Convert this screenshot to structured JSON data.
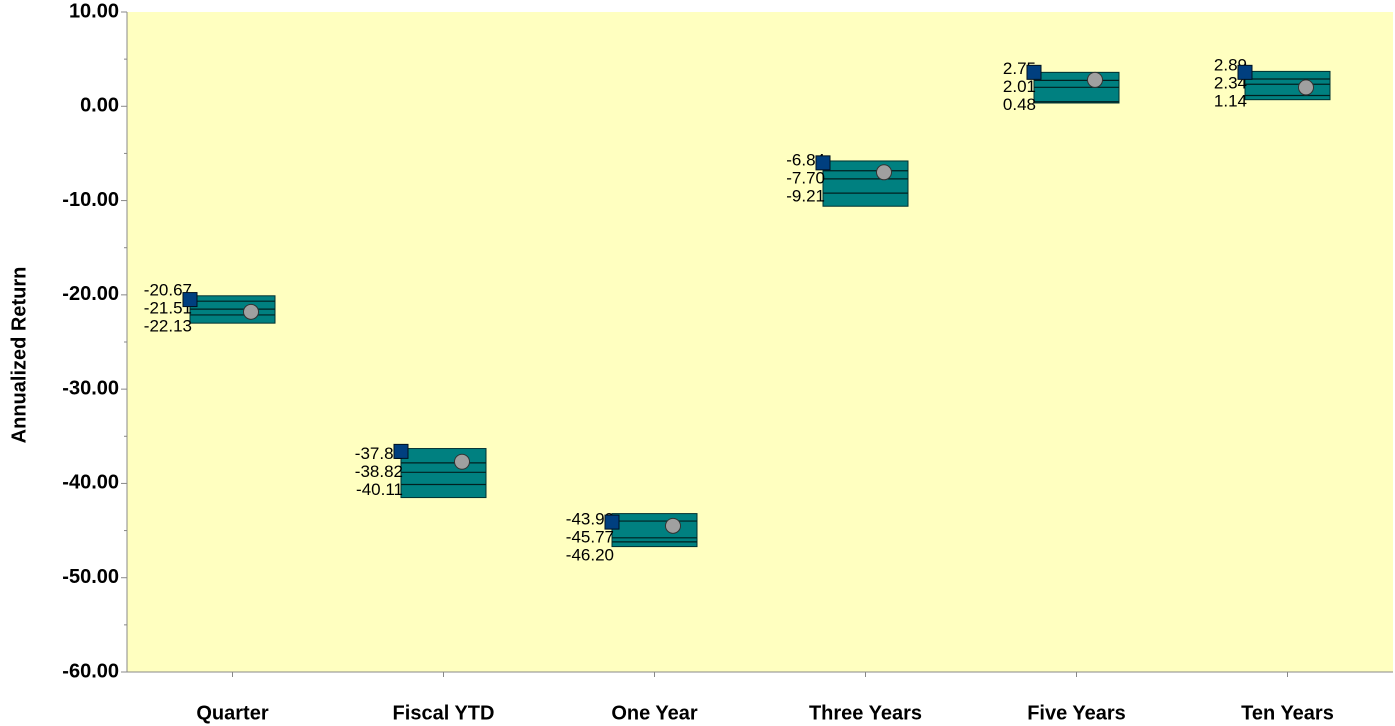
{
  "chart_data": {
    "type": "floating-box",
    "y_label": "Annualized Return",
    "categories": [
      "Quarter",
      "Fiscal YTD",
      "One Year",
      "Three Years",
      "Five Years",
      "Ten Years"
    ],
    "box_top": [
      -20.1,
      -36.3,
      -43.2,
      -5.8,
      3.6,
      3.7
    ],
    "box_bottom": [
      -23.0,
      -41.5,
      -46.7,
      -10.6,
      0.35,
      0.7
    ],
    "upper": {
      "values": [
        -20.67,
        -37.82,
        -43.99,
        -6.84,
        2.75,
        2.89
      ],
      "value_labels": [
        "-20.67",
        "-37.82",
        "-43.99",
        "-6.84",
        "2.75",
        "2.89"
      ]
    },
    "median": {
      "values": [
        -21.51,
        -38.82,
        -45.77,
        -7.7,
        2.01,
        2.34
      ],
      "value_labels": [
        "-21.51",
        "-38.82",
        "-45.77",
        "-7.70",
        "2.01",
        "2.34"
      ]
    },
    "lower": {
      "values": [
        -22.13,
        -40.11,
        -46.2,
        -9.21,
        0.48,
        1.14
      ],
      "value_labels": [
        "-22.13",
        "-40.11",
        "-46.20",
        "-9.21",
        "0.48",
        "1.14"
      ]
    },
    "square": {
      "color": "#003f7f",
      "values": [
        -20.5,
        -36.6,
        -44.1,
        -6.0,
        3.6,
        3.6
      ]
    },
    "circle": {
      "color": "#a0a0a0",
      "values": [
        -21.8,
        -37.7,
        -44.5,
        -7.0,
        2.8,
        2.0
      ]
    },
    "box_color": "#008080",
    "background": "#ffffc0",
    "ylim": [
      -60,
      10
    ],
    "yticks": [
      {
        "value": 10,
        "label": "10.00"
      },
      {
        "value": 0,
        "label": "0.00"
      },
      {
        "value": -10,
        "label": "-10.00"
      },
      {
        "value": -20,
        "label": "-20.00"
      },
      {
        "value": -30,
        "label": "-30.00"
      },
      {
        "value": -40,
        "label": "-40.00"
      },
      {
        "value": -50,
        "label": "-50.00"
      },
      {
        "value": -60,
        "label": "-60.00"
      }
    ],
    "yminorticks": [
      5,
      -5,
      -15,
      -25,
      -35,
      -45,
      -55
    ]
  }
}
